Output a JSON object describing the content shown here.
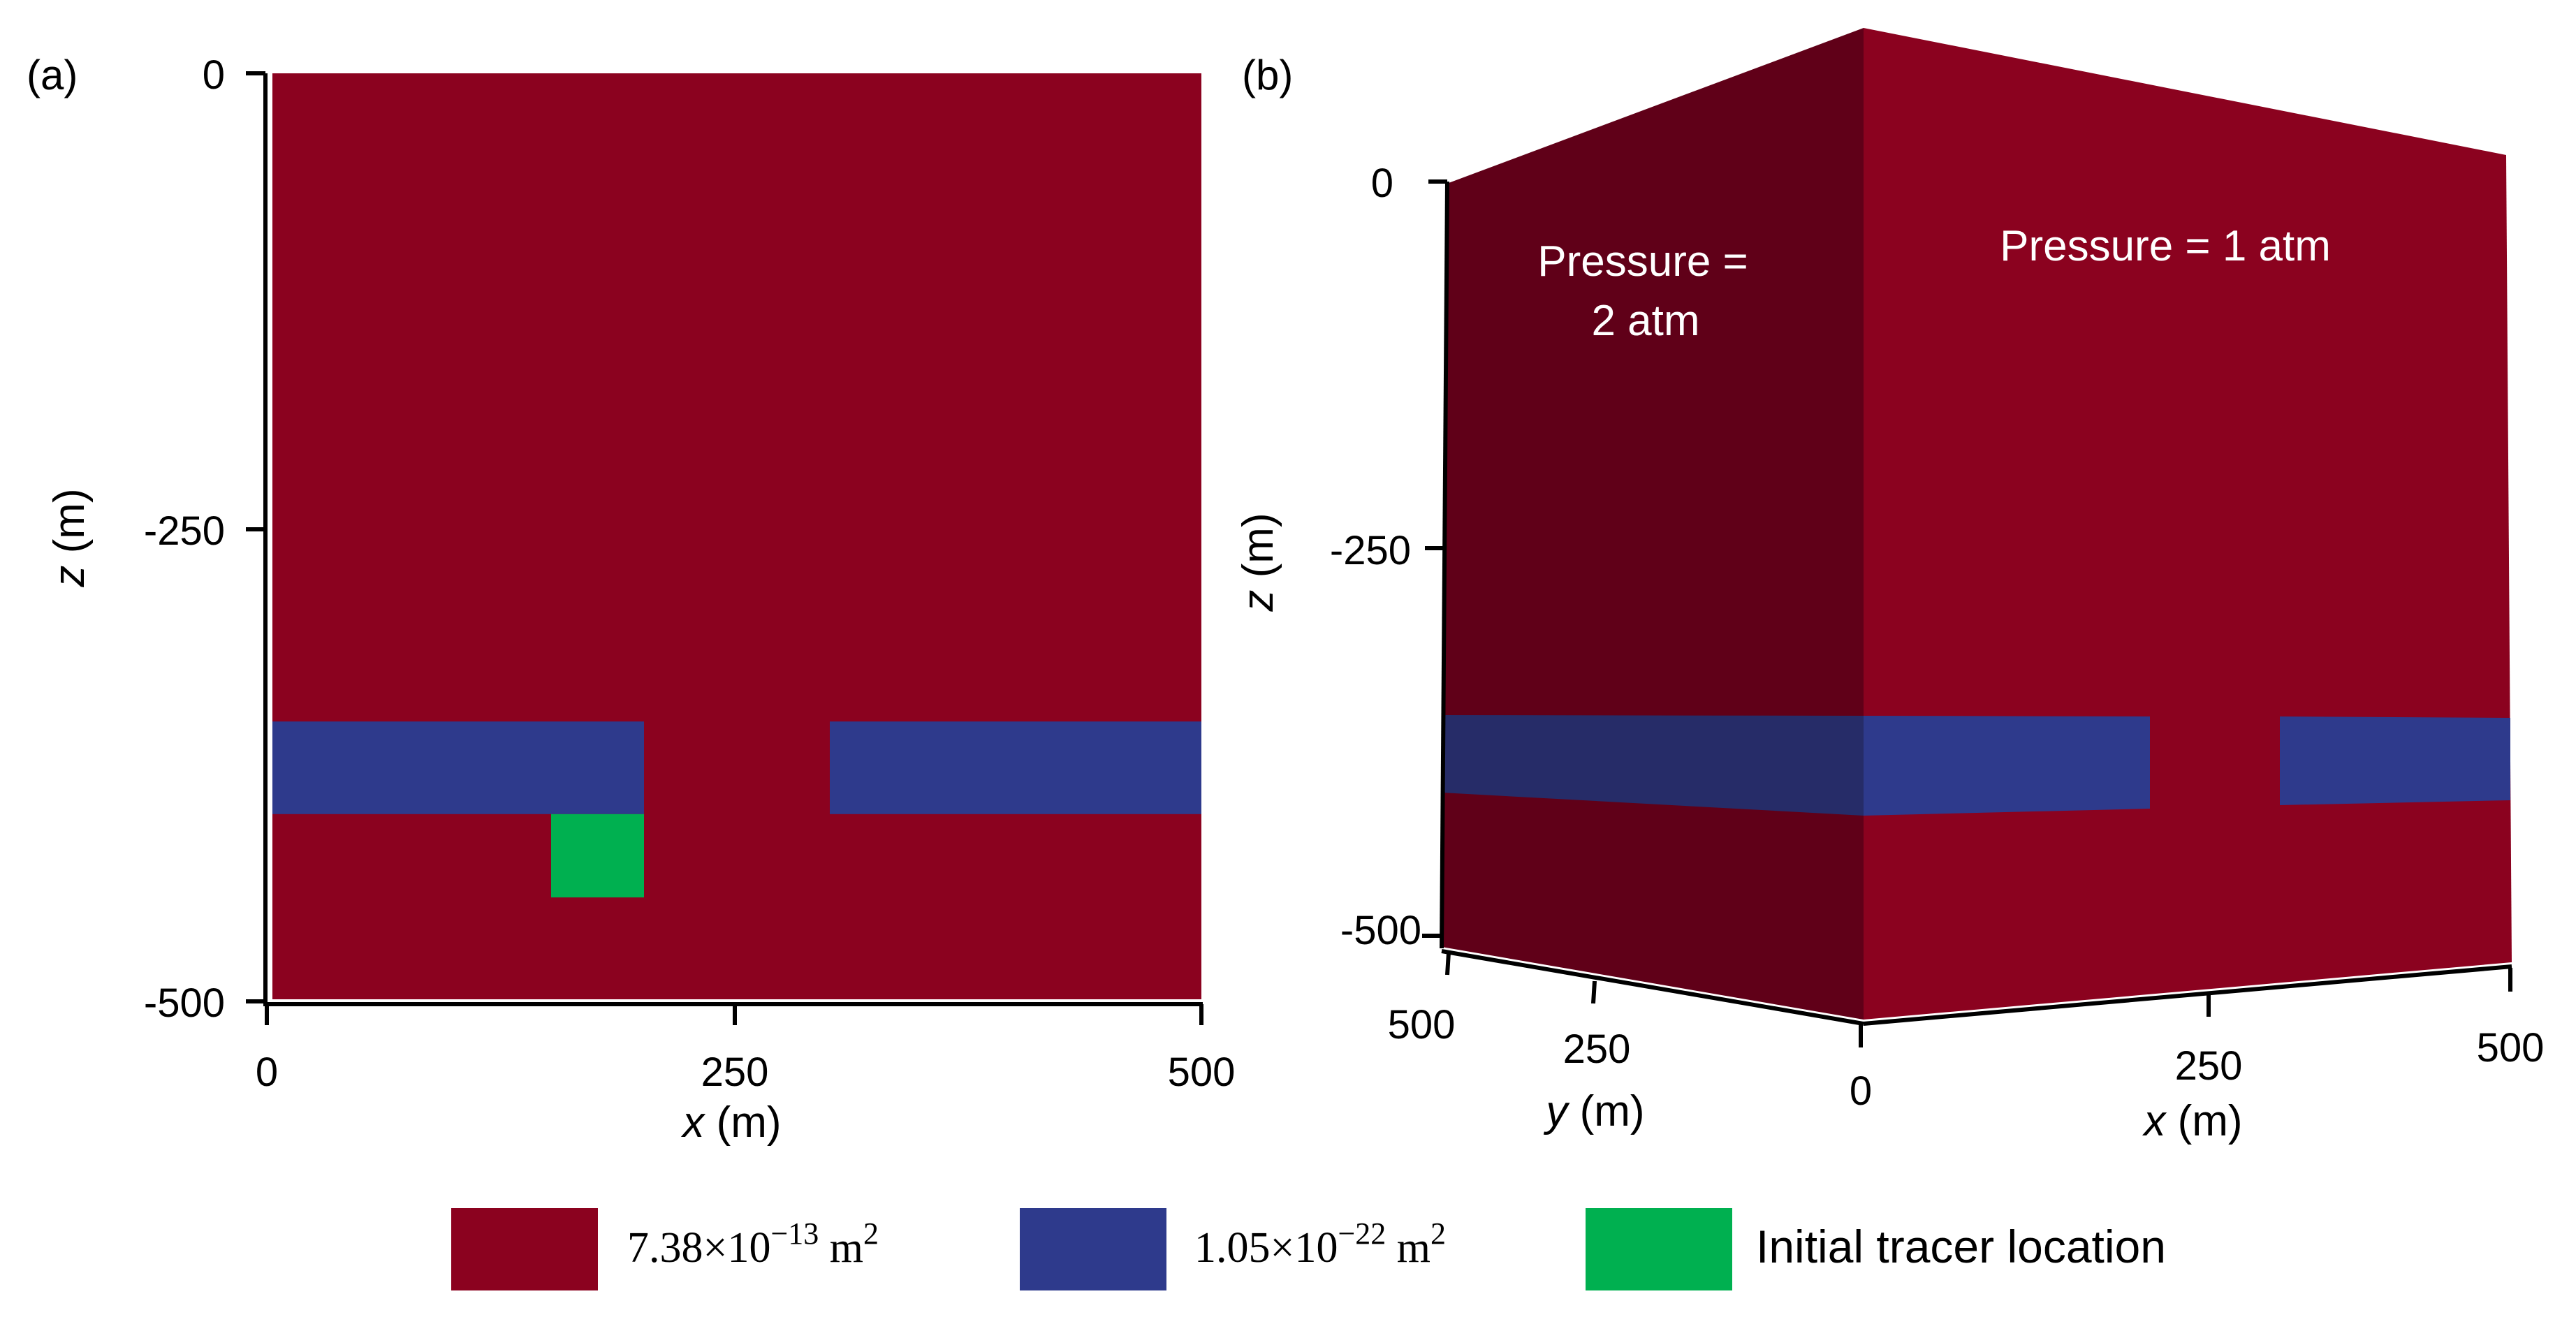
{
  "colors": {
    "high_perm": "#8B021F",
    "low_perm": "#2E3A8C",
    "tracer": "#00B050",
    "face_dark": "#600018",
    "face_low_dark": "#262C68",
    "text_on_dark": "#FFFFFF"
  },
  "panel_a": {
    "label": "(a)",
    "x_ticks": [
      "0",
      "250",
      "500"
    ],
    "z_ticks": [
      "0",
      "-250",
      "-500"
    ],
    "x_axis_label_var": "x",
    "x_axis_label_unit": " (m)",
    "z_axis_label_var": "z",
    "z_axis_label_unit": " (m)",
    "domain": {
      "x_range": [
        0,
        500
      ],
      "z_range": [
        -500,
        0
      ]
    },
    "low_perm_layers": [
      {
        "x_start": 0,
        "x_end": 200,
        "z_top": -350,
        "z_bottom": -400
      },
      {
        "x_start": 300,
        "x_end": 500,
        "z_top": -350,
        "z_bottom": -400
      }
    ],
    "tracer": {
      "x_start": 150,
      "x_end": 200,
      "z_top": -400,
      "z_bottom": -445
    }
  },
  "panel_b": {
    "label": "(b)",
    "z_ticks": [
      "0",
      "-250",
      "-500"
    ],
    "y_ticks": [
      "500",
      "250",
      "0"
    ],
    "x_ticks": [
      "0",
      "250",
      "500"
    ],
    "x_axis_label_var": "x",
    "x_axis_label_unit": " (m)",
    "y_axis_label_var": "y",
    "y_axis_label_unit": " (m)",
    "z_axis_label_var": "z",
    "z_axis_label_unit": " (m)",
    "pressure_left_line1": "Pressure =",
    "pressure_left_line2": "2 atm",
    "pressure_right": "Pressure = 1 atm"
  },
  "legend": {
    "items": [
      {
        "base": "7.38×10",
        "exp": "−13",
        "unit": " m",
        "unit_exp": "2"
      },
      {
        "base": "1.05×10",
        "exp": "−22",
        "unit": " m",
        "unit_exp": "2"
      },
      {
        "text": "Initial tracer location"
      }
    ]
  }
}
